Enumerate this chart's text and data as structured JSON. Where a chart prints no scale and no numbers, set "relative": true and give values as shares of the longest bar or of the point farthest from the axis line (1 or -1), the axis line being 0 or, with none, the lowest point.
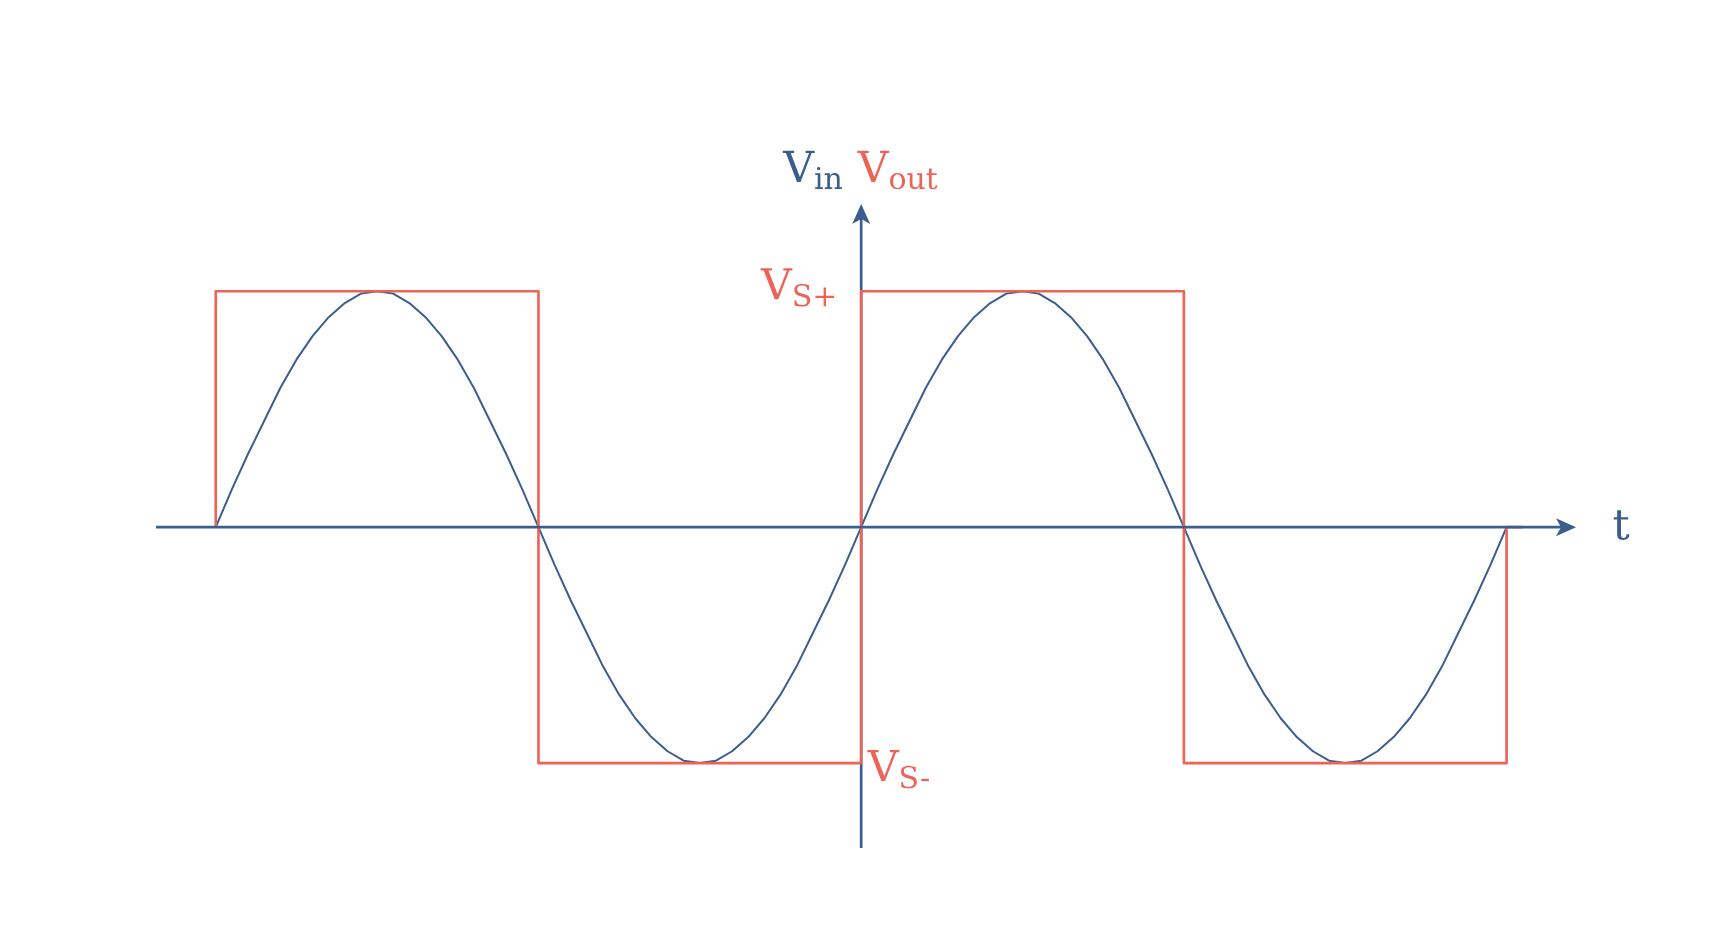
{
  "chart_data": {
    "type": "line",
    "relative": true,
    "xlabel": "t",
    "categories": [
      null,
      null,
      null,
      null,
      null,
      null,
      null,
      null,
      null,
      null,
      null,
      null,
      null,
      null,
      null,
      null,
      null,
      null,
      null,
      null,
      null,
      null,
      null,
      null,
      null,
      null,
      null,
      null,
      null,
      null,
      null,
      null,
      null,
      null,
      null,
      null,
      null,
      null,
      null,
      null,
      null,
      null,
      null,
      null,
      null,
      null,
      null,
      null,
      null,
      null,
      null,
      null,
      null,
      null,
      null,
      null,
      null,
      null,
      null,
      null,
      null,
      null,
      null,
      null,
      null,
      null,
      null,
      null,
      null,
      null,
      null,
      null,
      null,
      null,
      null,
      null,
      null,
      null,
      null,
      null,
      null,
      null
    ],
    "series": [
      {
        "name": "V$_{in}$",
        "color": "#3b5e8e",
        "values": [
          0,
          0.16,
          0.31,
          0.45,
          0.59,
          0.71,
          0.81,
          0.89,
          0.95,
          0.99,
          1,
          0.99,
          0.95,
          0.89,
          0.81,
          0.71,
          0.59,
          0.45,
          0.31,
          0.16,
          0,
          -0.16,
          -0.31,
          -0.45,
          -0.59,
          -0.71,
          -0.81,
          -0.89,
          -0.95,
          -0.99,
          -1,
          -0.99,
          -0.95,
          -0.89,
          -0.81,
          -0.71,
          -0.59,
          -0.45,
          -0.31,
          -0.16,
          0,
          0.16,
          0.31,
          0.45,
          0.59,
          0.71,
          0.81,
          0.89,
          0.95,
          0.99,
          1,
          0.99,
          0.95,
          0.89,
          0.81,
          0.71,
          0.59,
          0.45,
          0.31,
          0.16,
          0,
          -0.16,
          -0.31,
          -0.45,
          -0.59,
          -0.71,
          -0.81,
          -0.89,
          -0.95,
          -0.99,
          -1,
          -0.99,
          -0.95,
          -0.89,
          -0.81,
          -0.71,
          -0.59,
          -0.45,
          -0.31,
          -0.16,
          0,
          null
        ]
      },
      {
        "name": "V$_{out}$",
        "type": "step",
        "color": "#ee6358",
        "values": [
          0,
          1,
          1,
          1,
          1,
          1,
          1,
          1,
          1,
          1,
          1,
          1,
          1,
          1,
          1,
          1,
          1,
          1,
          1,
          1,
          1,
          -1,
          -1,
          -1,
          -1,
          -1,
          -1,
          -1,
          -1,
          -1,
          -1,
          -1,
          -1,
          -1,
          -1,
          -1,
          -1,
          -1,
          -1,
          -1,
          -1,
          1,
          1,
          1,
          1,
          1,
          1,
          1,
          1,
          1,
          1,
          1,
          1,
          1,
          1,
          1,
          1,
          1,
          1,
          1,
          1,
          -1,
          -1,
          -1,
          -1,
          -1,
          -1,
          -1,
          -1,
          -1,
          -1,
          -1,
          -1,
          -1,
          -1,
          -1,
          -1,
          -1,
          -1,
          -1,
          -1,
          0
        ]
      }
    ],
    "ref_lines": [
      {
        "axis": "y",
        "value": 0,
        "color": "#3b5e8e"
      }
    ],
    "annotations": [
      "V$_{S+}$",
      "V$_{S-}$"
    ]
  }
}
